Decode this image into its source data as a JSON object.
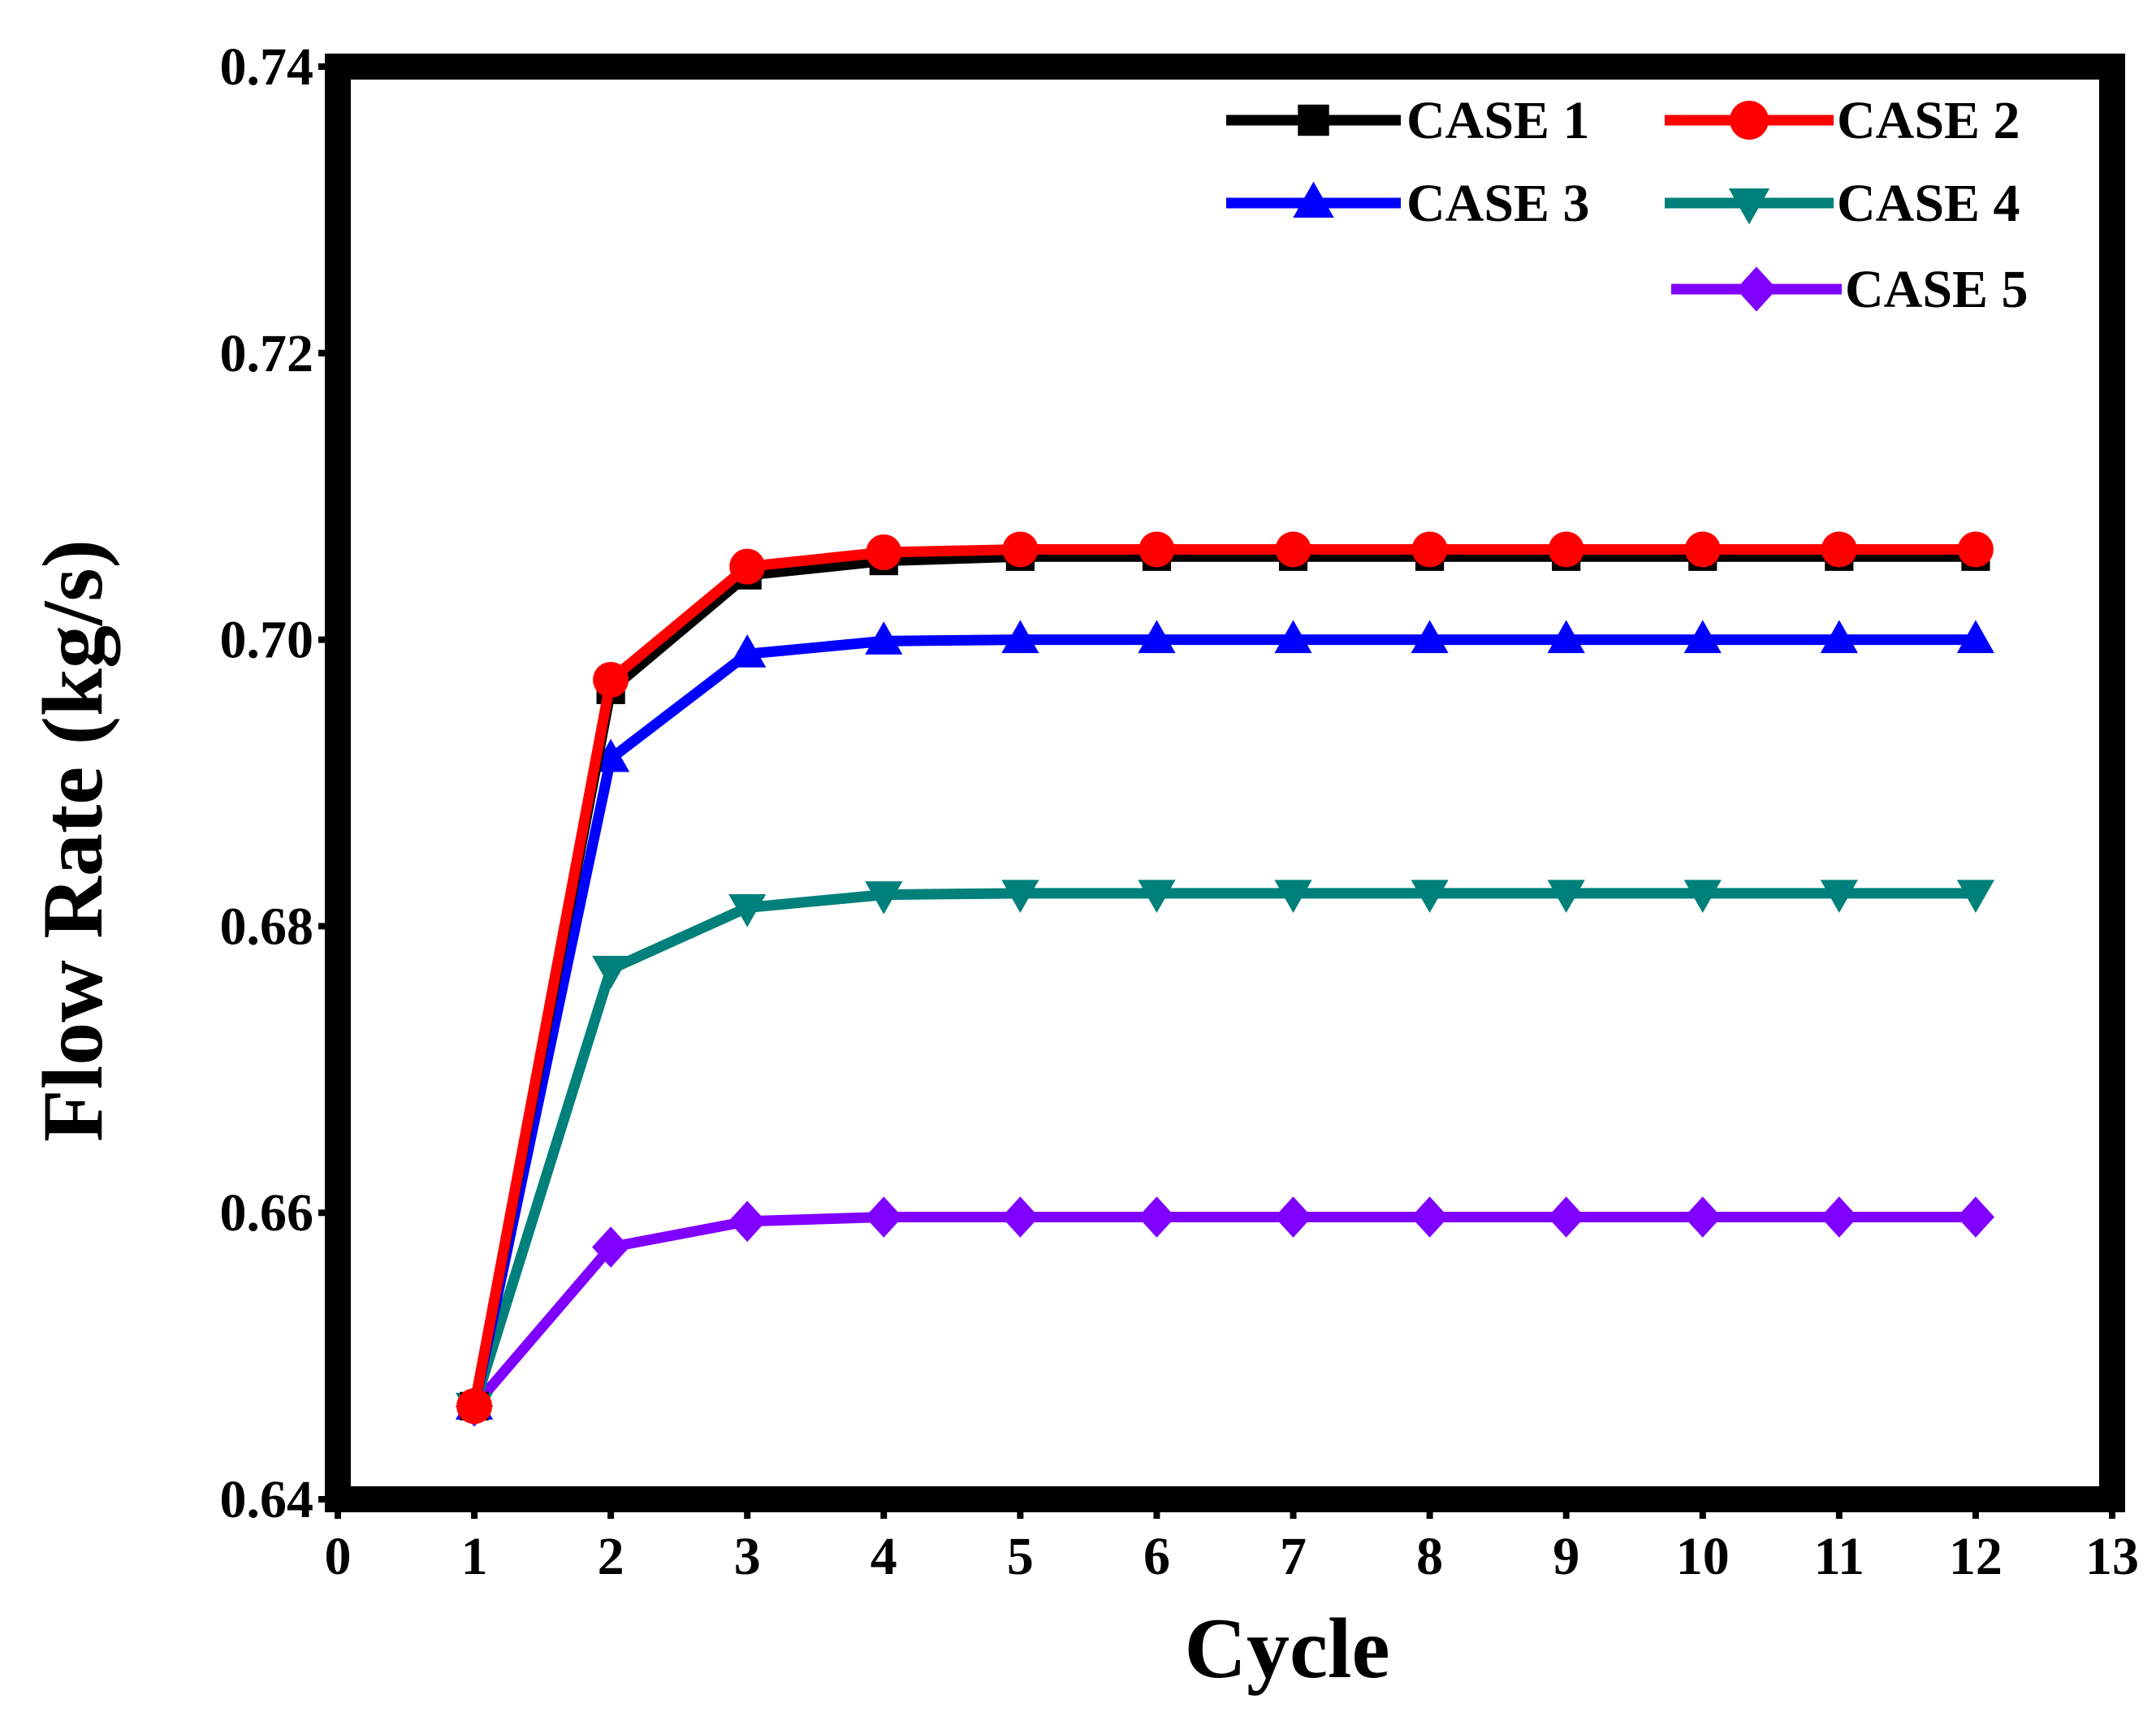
{
  "chart_data": {
    "type": "line",
    "title": "",
    "xlabel": "Cycle",
    "ylabel": "Flow Rate (kg/s)",
    "xlim": [
      0,
      13
    ],
    "ylim": [
      0.64,
      0.74
    ],
    "x_ticks": [
      "0",
      "1",
      "2",
      "3",
      "4",
      "5",
      "6",
      "7",
      "8",
      "9",
      "10",
      "11",
      "12",
      "13"
    ],
    "x_tick_values": [
      0,
      1,
      2,
      3,
      4,
      5,
      6,
      7,
      8,
      9,
      10,
      11,
      12,
      13
    ],
    "y_ticks": [
      "0.64",
      "0.66",
      "0.68",
      "0.70",
      "0.72",
      "0.74"
    ],
    "y_tick_values": [
      0.64,
      0.66,
      0.68,
      0.7,
      0.72,
      0.74
    ],
    "grid": false,
    "legend_position": "top-right",
    "x": [
      1,
      2,
      3,
      4,
      5,
      6,
      7,
      8,
      9,
      10,
      11,
      12
    ],
    "series": [
      {
        "name": "CASE 1",
        "color": "#000000",
        "marker": "square",
        "values": [
          0.6465,
          0.6965,
          0.7045,
          0.7055,
          0.7058,
          0.7058,
          0.7058,
          0.7058,
          0.7058,
          0.7058,
          0.7058,
          0.7058
        ]
      },
      {
        "name": "CASE 2",
        "color": "#ff0000",
        "marker": "circle",
        "values": [
          0.6465,
          0.6972,
          0.7051,
          0.7061,
          0.7063,
          0.7063,
          0.7063,
          0.7063,
          0.7063,
          0.7063,
          0.7063,
          0.7063
        ]
      },
      {
        "name": "CASE 3",
        "color": "#0000ff",
        "marker": "triangle-up",
        "values": [
          0.6465,
          0.6917,
          0.699,
          0.6999,
          0.7,
          0.7,
          0.7,
          0.7,
          0.7,
          0.7,
          0.7,
          0.7
        ]
      },
      {
        "name": "CASE 4",
        "color": "#00807a",
        "marker": "triangle-down",
        "values": [
          0.6465,
          0.677,
          0.6813,
          0.6822,
          0.6823,
          0.6823,
          0.6823,
          0.6823,
          0.6823,
          0.6823,
          0.6823,
          0.6823
        ]
      },
      {
        "name": "CASE 5",
        "color": "#8000ff",
        "marker": "diamond",
        "values": [
          0.6465,
          0.6576,
          0.6594,
          0.6597,
          0.6597,
          0.6597,
          0.6597,
          0.6597,
          0.6597,
          0.6597,
          0.6597,
          0.6597
        ]
      }
    ]
  }
}
